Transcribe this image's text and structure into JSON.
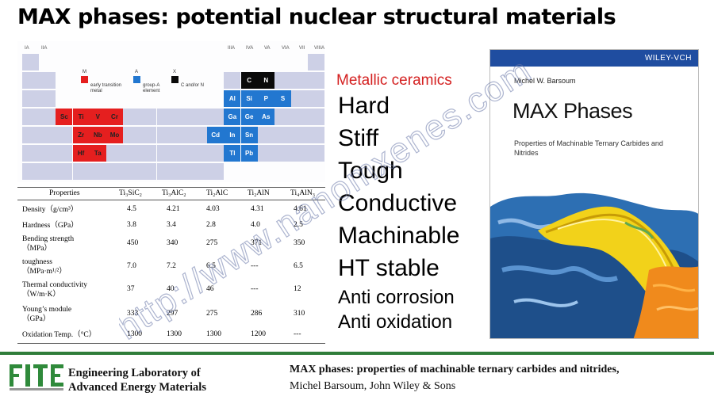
{
  "slide": {
    "title": "MAX phases: potential nuclear structural materials"
  },
  "periodic_table": {
    "group_labels": [
      "IA",
      "IIA",
      "IIIA",
      "IVA",
      "VA",
      "VIA",
      "VII",
      "VIIIA"
    ],
    "legend": {
      "M": "early transition metal",
      "A": "group-A element",
      "X": "C and/or N",
      "M_letter": "M",
      "A_letter": "A",
      "X_letter": "X"
    },
    "cells": [
      {
        "s": "C",
        "k": "X"
      },
      {
        "s": "N",
        "k": "X"
      },
      {
        "s": "Al",
        "k": "A"
      },
      {
        "s": "Si",
        "k": "A"
      },
      {
        "s": "P",
        "k": "A"
      },
      {
        "s": "S",
        "k": "A"
      },
      {
        "s": "Ga",
        "k": "A"
      },
      {
        "s": "Ge",
        "k": "A"
      },
      {
        "s": "As",
        "k": "A"
      },
      {
        "s": "Cd",
        "k": "A"
      },
      {
        "s": "In",
        "k": "A"
      },
      {
        "s": "Sn",
        "k": "A"
      },
      {
        "s": "Tl",
        "k": "A"
      },
      {
        "s": "Pb",
        "k": "A"
      },
      {
        "s": "Sc",
        "k": "M"
      },
      {
        "s": "Ti",
        "k": "M"
      },
      {
        "s": "V",
        "k": "M"
      },
      {
        "s": "Cr",
        "k": "M"
      },
      {
        "s": "Zr",
        "k": "M"
      },
      {
        "s": "Nb",
        "k": "M"
      },
      {
        "s": "Mo",
        "k": "M"
      },
      {
        "s": "Hf",
        "k": "M"
      },
      {
        "s": "Ta",
        "k": "M"
      }
    ]
  },
  "properties_table": {
    "headers": [
      "Properties",
      "Ti₃SiC₂",
      "Ti₃AlC₂",
      "Ti₂AlC",
      "Ti₂AlN",
      "Ti₄AlN₃"
    ],
    "rows": [
      {
        "label": "Density（g/cm³）",
        "values": [
          "4.5",
          "4.21",
          "4.03",
          "4.31",
          "4.61"
        ]
      },
      {
        "label": "Hardness（GPa）",
        "values": [
          "3.8",
          "3.4",
          "2.8",
          "4.0",
          "2.5"
        ]
      },
      {
        "label": "Bending strength\n（MPa）",
        "values": [
          "450",
          "340",
          "275",
          "371",
          "350"
        ]
      },
      {
        "label": "toughness\n（MPa·m¹/²）",
        "values": [
          "7.0",
          "7.2",
          "6.5",
          "---",
          "6.5"
        ]
      },
      {
        "label": "Thermal conductivity\n（W/m·K）",
        "values": [
          "37",
          "40",
          "46",
          "---",
          "12"
        ]
      },
      {
        "label": "Young’s module\n（GPa）",
        "values": [
          "333",
          "297",
          "275",
          "286",
          "310"
        ]
      },
      {
        "label": "Oxidation Temp.（°C）",
        "values": [
          "1300",
          "1300",
          "1300",
          "1200",
          "---"
        ]
      }
    ]
  },
  "keywords": {
    "heading": "Metallic ceramics",
    "large": [
      "Hard",
      "Stiff",
      "Tough",
      "Conductive",
      "Machinable",
      "HT stable"
    ],
    "small": [
      "Anti corrosion",
      "Anti oxidation"
    ]
  },
  "book": {
    "publisher": "WILEY-VCH",
    "author": "Michel W. Barsoum",
    "title": "MAX Phases",
    "subtitle": "Properties of Machinable Ternary Carbides and Nitrides"
  },
  "footer": {
    "lab_line1": "Engineering Laboratory of",
    "lab_line2": "Advanced Energy Materials",
    "reference_line1": "MAX phases: properties of machinable ternary carbides and nitrides,",
    "reference_line2": "Michel Barsoum, John Wiley & Sons"
  },
  "watermark": {
    "text": "http://www.nanomxenes.com"
  },
  "colors": {
    "transition_metal": "#e51f1f",
    "a_group": "#2277d0",
    "x_element": "#0a0a0a",
    "heading_red": "#d42020",
    "wiley_blue": "#1f4da0",
    "footer_green": "#2f7d3a"
  }
}
